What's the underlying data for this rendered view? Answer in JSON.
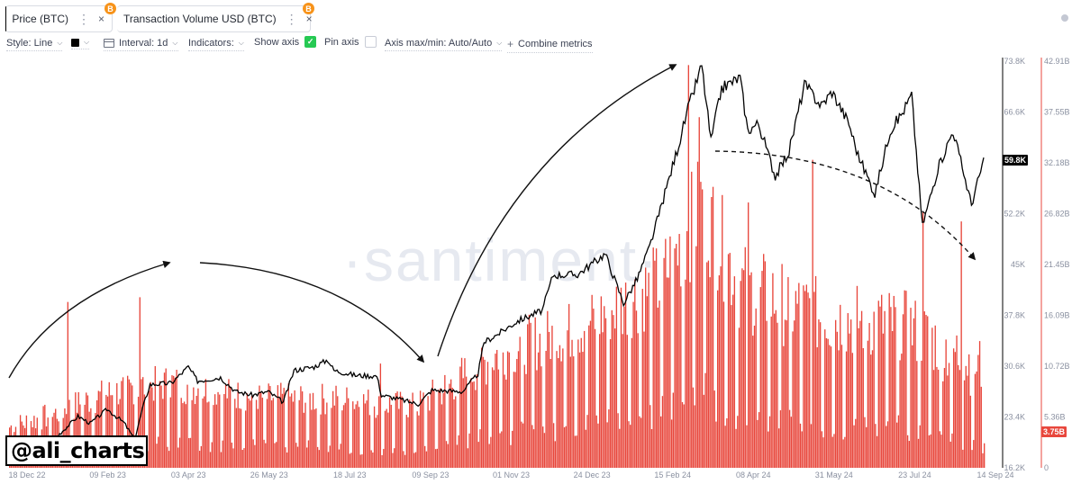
{
  "tabs": [
    {
      "label": "Price (BTC)",
      "accent": "#000000",
      "coin": "B",
      "menu": "⋮",
      "close": "×"
    },
    {
      "label": "Transaction Volume USD (BTC)",
      "accent": "#e8473c",
      "coin": "B",
      "menu": "⋮",
      "close": "×"
    }
  ],
  "toolbar": {
    "style": "Style: Line",
    "interval": "Interval: 1d",
    "indicators": "Indicators:",
    "show_axis": "Show axis",
    "pin_axis": "Pin axis",
    "axis_maxmin": "Axis max/min: Auto/Auto",
    "combine": "Combine metrics",
    "checkmark": "✓",
    "plus": "+",
    "chevron": "⌵"
  },
  "watermark": "·santiment·",
  "signature": "@ali_charts",
  "colors": {
    "price": "#000000",
    "volume": "#e8473c",
    "accent_check": "#26c953"
  },
  "badges": {
    "price": "59.8K",
    "volume": "3.75B"
  },
  "chart_data": {
    "type": "bar",
    "x_ticks": [
      "18 Dec 22",
      "09 Feb 23",
      "03 Apr 23",
      "26 May 23",
      "18 Jul 23",
      "09 Sep 23",
      "01 Nov 23",
      "24 Dec 23",
      "15 Feb 24",
      "08 Apr 24",
      "31 May 24",
      "23 Jul 24",
      "14 Sep 24"
    ],
    "price_axis": {
      "ticks": [
        "73.8K",
        "66.6K",
        "59.4K",
        "52.2K",
        "45K",
        "37.8K",
        "30.6K",
        "23.4K",
        "16.2K"
      ],
      "ylim": [
        16200,
        73800
      ]
    },
    "volume_axis": {
      "ticks": [
        "42.91B",
        "37.55B",
        "32.18B",
        "26.82B",
        "21.45B",
        "16.09B",
        "10.72B",
        "5.36B",
        "0"
      ],
      "ylim": [
        0,
        42910000000
      ]
    },
    "series": [
      {
        "name": "Price (BTC)",
        "type": "line",
        "axis": "price",
        "points": [
          [
            "2022-12-18",
            16800
          ],
          [
            "2023-01-05",
            16900
          ],
          [
            "2023-01-12",
            18200
          ],
          [
            "2023-01-20",
            21000
          ],
          [
            "2023-02-01",
            23500
          ],
          [
            "2023-02-09",
            22500
          ],
          [
            "2023-02-20",
            24500
          ],
          [
            "2023-03-03",
            22600
          ],
          [
            "2023-03-10",
            20200
          ],
          [
            "2023-03-15",
            24500
          ],
          [
            "2023-03-20",
            28000
          ],
          [
            "2023-04-03",
            28200
          ],
          [
            "2023-04-14",
            30500
          ],
          [
            "2023-04-20",
            28500
          ],
          [
            "2023-05-05",
            29000
          ],
          [
            "2023-05-15",
            27000
          ],
          [
            "2023-05-26",
            26500
          ],
          [
            "2023-06-05",
            27000
          ],
          [
            "2023-06-15",
            25500
          ],
          [
            "2023-06-22",
            30000
          ],
          [
            "2023-07-05",
            30500
          ],
          [
            "2023-07-14",
            31500
          ],
          [
            "2023-07-18",
            30000
          ],
          [
            "2023-08-01",
            29300
          ],
          [
            "2023-08-15",
            29200
          ],
          [
            "2023-08-18",
            26500
          ],
          [
            "2023-09-01",
            25800
          ],
          [
            "2023-09-11",
            25200
          ],
          [
            "2023-09-20",
            27200
          ],
          [
            "2023-10-10",
            27000
          ],
          [
            "2023-10-20",
            29500
          ],
          [
            "2023-10-24",
            34000
          ],
          [
            "2023-11-01",
            35000
          ],
          [
            "2023-11-15",
            37000
          ],
          [
            "2023-12-01",
            38500
          ],
          [
            "2023-12-08",
            43500
          ],
          [
            "2023-12-24",
            43600
          ],
          [
            "2024-01-11",
            46500
          ],
          [
            "2024-01-23",
            39500
          ],
          [
            "2024-02-01",
            43000
          ],
          [
            "2024-02-09",
            47500
          ],
          [
            "2024-02-15",
            52000
          ],
          [
            "2024-02-28",
            62000
          ],
          [
            "2024-03-05",
            67000
          ],
          [
            "2024-03-14",
            73200
          ],
          [
            "2024-03-20",
            62500
          ],
          [
            "2024-03-27",
            70000
          ],
          [
            "2024-04-08",
            71500
          ],
          [
            "2024-04-13",
            64000
          ],
          [
            "2024-04-20",
            65000
          ],
          [
            "2024-05-01",
            57500
          ],
          [
            "2024-05-10",
            61000
          ],
          [
            "2024-05-20",
            70500
          ],
          [
            "2024-05-31",
            67500
          ],
          [
            "2024-06-07",
            69500
          ],
          [
            "2024-06-18",
            65000
          ],
          [
            "2024-06-24",
            60500
          ],
          [
            "2024-07-05",
            55000
          ],
          [
            "2024-07-15",
            64000
          ],
          [
            "2024-07-23",
            66500
          ],
          [
            "2024-07-29",
            69000
          ],
          [
            "2024-08-05",
            50500
          ],
          [
            "2024-08-15",
            58500
          ],
          [
            "2024-08-25",
            64000
          ],
          [
            "2024-09-06",
            53500
          ],
          [
            "2024-09-14",
            59800
          ]
        ]
      },
      {
        "name": "Transaction Volume USD (BTC)",
        "type": "bar",
        "axis": "volume",
        "estimated_daily_billions_weekly_ranges": [
          [
            "2022-12-18",
            2.0,
            5.5
          ],
          [
            "2023-01-15",
            3.0,
            7.0
          ],
          [
            "2023-02-09",
            4.0,
            9.0
          ],
          [
            "2023-03-10",
            5.0,
            10.5
          ],
          [
            "2023-04-03",
            5.0,
            11.0
          ],
          [
            "2023-05-26",
            4.5,
            9.0
          ],
          [
            "2023-07-18",
            4.0,
            9.0
          ],
          [
            "2023-09-09",
            3.5,
            8.0
          ],
          [
            "2023-11-01",
            6.5,
            15.0
          ],
          [
            "2023-12-24",
            8.5,
            18.0
          ],
          [
            "2024-02-15",
            11.0,
            24.0
          ],
          [
            "2024-03-14",
            16.0,
            34.0
          ],
          [
            "2024-04-08",
            10.0,
            24.0
          ],
          [
            "2024-05-31",
            8.0,
            20.0
          ],
          [
            "2024-07-23",
            8.0,
            19.0
          ],
          [
            "2024-09-14",
            3.75,
            14.0
          ]
        ],
        "spikes": [
          [
            "2023-01-25",
            17.5
          ],
          [
            "2023-03-13",
            18.0
          ],
          [
            "2023-08-17",
            11.0
          ],
          [
            "2024-03-05",
            42.5
          ],
          [
            "2024-03-12",
            37.0
          ],
          [
            "2024-04-13",
            28.0
          ],
          [
            "2024-05-25",
            32.5
          ],
          [
            "2024-08-05",
            27.0
          ],
          [
            "2024-08-30",
            26.0
          ]
        ]
      }
    ],
    "annotations": [
      "arrow-up-left",
      "arrow-down-mid",
      "arrow-up-right",
      "dashed-arrow-down-right"
    ],
    "grid": false
  }
}
